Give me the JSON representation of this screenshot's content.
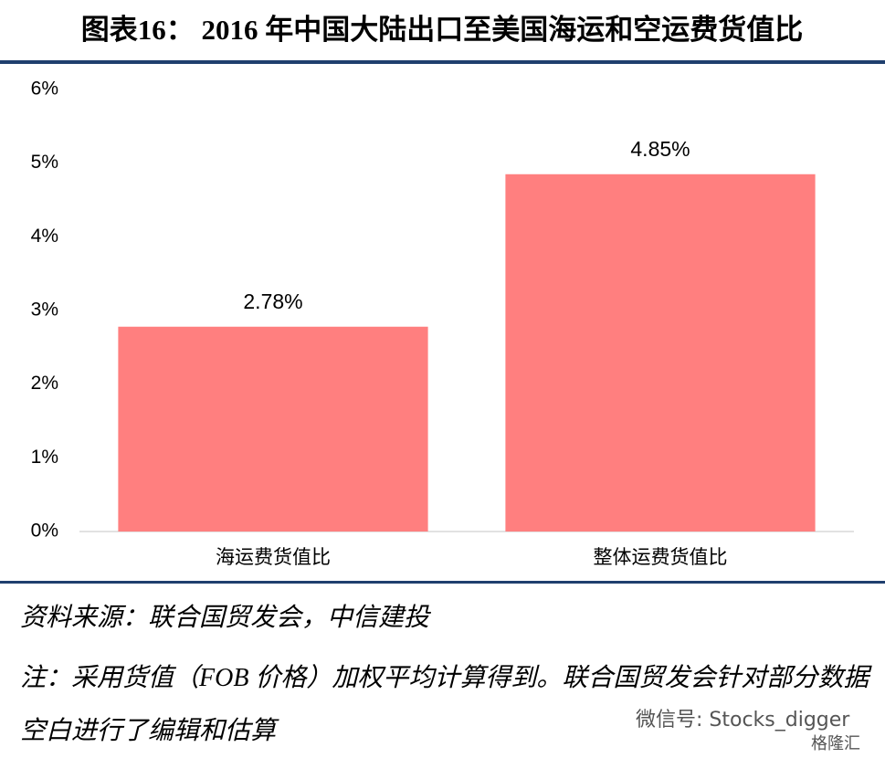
{
  "chart_data": {
    "type": "bar",
    "title": "图表16：  2016 年中国大陆出口至美国海运和空运费货值比",
    "categories": [
      "海运费货值比",
      "整体运费货值比"
    ],
    "values": [
      2.78,
      4.85
    ],
    "value_labels": [
      "2.78%",
      "4.85%"
    ],
    "color": "#ff7f7f",
    "ylim": [
      0,
      6
    ],
    "yticks": [
      {
        "value": 0,
        "label": "0%"
      },
      {
        "value": 1,
        "label": "1%"
      },
      {
        "value": 2,
        "label": "2%"
      },
      {
        "value": 3,
        "label": "3%"
      },
      {
        "value": 4,
        "label": "4%"
      },
      {
        "value": 5,
        "label": "5%"
      },
      {
        "value": 6,
        "label": "6%"
      }
    ],
    "grid": false
  },
  "source": "资料来源：联合国贸发会，中信建投",
  "note": "注：采用货值（FOB 价格）加权平均计算得到。联合国贸发会针对部分数据空白进行了编辑和估算",
  "watermark": "微信号: Stocks_digger",
  "watermark_logo": "格隆汇"
}
